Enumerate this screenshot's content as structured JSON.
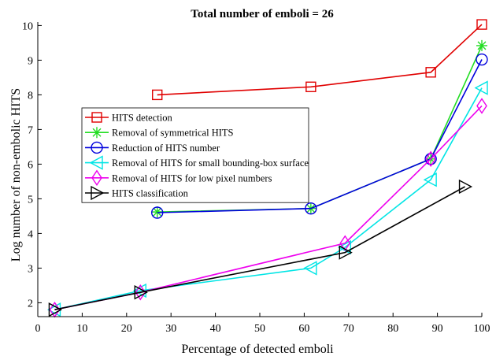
{
  "chart_data": {
    "type": "line",
    "title": "Total number of emboli = 26",
    "xlabel": "Percentage of detected emboli",
    "ylabel": "Log number of non-embolic HITS",
    "xlim": [
      0,
      100
    ],
    "ylim": [
      1.6,
      10.1
    ],
    "xticks": [
      0,
      10,
      20,
      30,
      40,
      50,
      60,
      70,
      80,
      90,
      100
    ],
    "yticks": [
      2,
      3,
      4,
      5,
      6,
      7,
      8,
      9,
      10
    ],
    "grid": false,
    "legend_position": "center-left",
    "series": [
      {
        "name": "HITS detection",
        "color": "#e00000",
        "marker": "square",
        "x": [
          26.9,
          61.5,
          88.5,
          100
        ],
        "y": [
          8.0,
          8.23,
          8.65,
          10.03
        ]
      },
      {
        "name": "Removal of symmetrical HITS",
        "color": "#22dd22",
        "marker": "asterisk",
        "x": [
          26.9,
          61.5,
          88.5,
          100
        ],
        "y": [
          4.62,
          4.72,
          6.15,
          9.42
        ]
      },
      {
        "name": "Reduction of HITS number",
        "color": "#0000dd",
        "marker": "circle",
        "x": [
          26.9,
          61.5,
          88.5,
          100
        ],
        "y": [
          4.6,
          4.72,
          6.15,
          9.02
        ]
      },
      {
        "name": "Removal of HITS for small bounding-box surface",
        "color": "#00e5e5",
        "marker": "triangle-left",
        "x": [
          3.8,
          23.1,
          61.5,
          69.2,
          88.5,
          100
        ],
        "y": [
          1.8,
          2.35,
          3.0,
          3.6,
          5.55,
          8.2
        ]
      },
      {
        "name": "Removal of HITS for low pixel numbers",
        "color": "#ee00ee",
        "marker": "diamond",
        "x": [
          3.8,
          23.1,
          69.2,
          88.5,
          100
        ],
        "y": [
          1.8,
          2.3,
          3.72,
          6.15,
          7.68
        ]
      },
      {
        "name": "HITS classification",
        "color": "#000000",
        "marker": "triangle-right",
        "x": [
          3.8,
          23.1,
          69.2,
          96.2
        ],
        "y": [
          1.8,
          2.3,
          3.45,
          5.35
        ]
      }
    ]
  }
}
